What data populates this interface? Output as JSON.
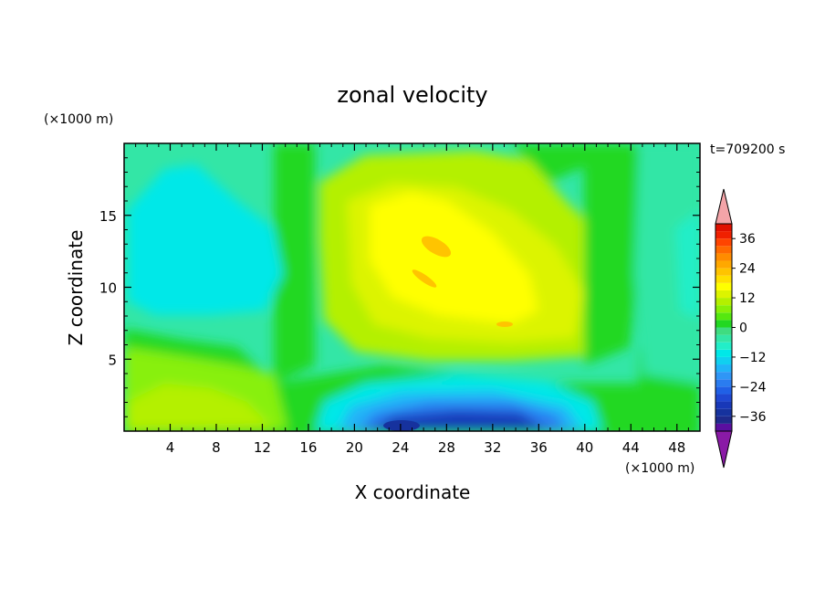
{
  "chart_data": {
    "type": "heatmap",
    "title": "zonal velocity",
    "xlabel": "X coordinate",
    "ylabel": "Z coordinate",
    "x_unit": "(×1000 m)",
    "y_unit": "(×1000 m)",
    "time_label": "t=709200 s",
    "xlim": [
      0,
      50
    ],
    "ylim": [
      0,
      20
    ],
    "xticks": [
      4,
      8,
      12,
      16,
      20,
      24,
      28,
      32,
      36,
      40,
      44,
      48
    ],
    "yticks": [
      5,
      10,
      15
    ],
    "colorbar": {
      "levels": [
        -42,
        -39,
        -36,
        -33,
        -30,
        -27,
        -24,
        -21,
        -18,
        -15,
        -12,
        -9,
        -6,
        -3,
        0,
        3,
        6,
        9,
        12,
        15,
        18,
        21,
        24,
        27,
        30,
        33,
        36,
        39,
        42
      ],
      "colors": [
        "#5a0fa0",
        "#1e2a8c",
        "#16329e",
        "#1838b8",
        "#1f48d2",
        "#2060e6",
        "#2a7cf0",
        "#2f96f6",
        "#20b4f8",
        "#10d0f0",
        "#00e8e8",
        "#22eec8",
        "#33e6a6",
        "#3fdc80",
        "#22d822",
        "#55e80f",
        "#88f008",
        "#b4f000",
        "#dcf400",
        "#ffff00",
        "#ffe000",
        "#ffc400",
        "#ffa800",
        "#ff8c00",
        "#ff6a00",
        "#ff4400",
        "#f02000",
        "#e01000"
      ],
      "tick_labels": [
        "36",
        "24",
        "12",
        "0",
        "−12",
        "−24",
        "−36"
      ],
      "tick_values": [
        36,
        24,
        12,
        0,
        -12,
        -24,
        -36
      ],
      "over_color": "#f4a4a8",
      "under_color": "#8a1aa6"
    },
    "field_description_points": [
      {
        "x": 5,
        "z": 14,
        "u": -9
      },
      {
        "x": 27,
        "z": 12,
        "u": 15
      },
      {
        "x": 27,
        "z": 1,
        "u": -33
      },
      {
        "x": 17,
        "z": 10,
        "u": 3
      },
      {
        "x": 46,
        "z": 12,
        "u": -6
      },
      {
        "x": 6,
        "z": 1,
        "u": 12
      }
    ]
  }
}
